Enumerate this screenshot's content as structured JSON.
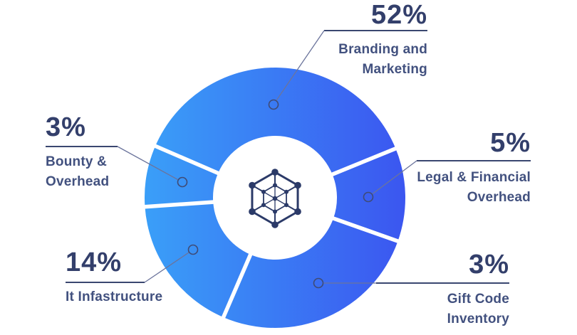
{
  "chart_data": {
    "type": "pie",
    "subtype": "donut-infographic",
    "title": "",
    "unit": "%",
    "legend_position": "callout-labels",
    "center_icon": "network-cube-icon",
    "segments": [
      {
        "label": "Branding and Marketing",
        "label_lines": [
          "Branding and",
          "Marketing"
        ],
        "pct": "52%",
        "value": 52,
        "angle_start": 22.2,
        "angle_end": 156.6
      },
      {
        "label": "Bounty & Overhead",
        "label_lines": [
          "Bounty &",
          "Overhead"
        ],
        "pct": "3%",
        "value": 3,
        "angle_start": 156.6,
        "angle_end": 184
      },
      {
        "label": "It Infastructure",
        "label_lines": [
          "It Infastructure"
        ],
        "pct": "14%",
        "value": 14,
        "angle_start": 184,
        "angle_end": 246.7
      },
      {
        "label": "Gift Code Inventory",
        "label_lines": [
          "Gift Code",
          "Inventory"
        ],
        "pct": "3%",
        "value": 3,
        "angle_start": 246.7,
        "angle_end": 340.5
      },
      {
        "label": "Legal & Financial Overhead",
        "label_lines": [
          "Legal & Financial",
          "Overhead"
        ],
        "pct": "5%",
        "value": 5,
        "angle_start": 340.5,
        "angle_end": 382.2
      }
    ],
    "colors": {
      "gradient_left": "#3aa0f8",
      "gradient_right": "#3b55f0",
      "pct_text": "#333f6b",
      "label_text": "#42517f",
      "underline": "#3a4770",
      "thin_line": "#6b749c",
      "dot_stroke": "#3f4b76",
      "icon": "#2b3a68",
      "background": "#ffffff",
      "gap": "#ffffff"
    }
  }
}
